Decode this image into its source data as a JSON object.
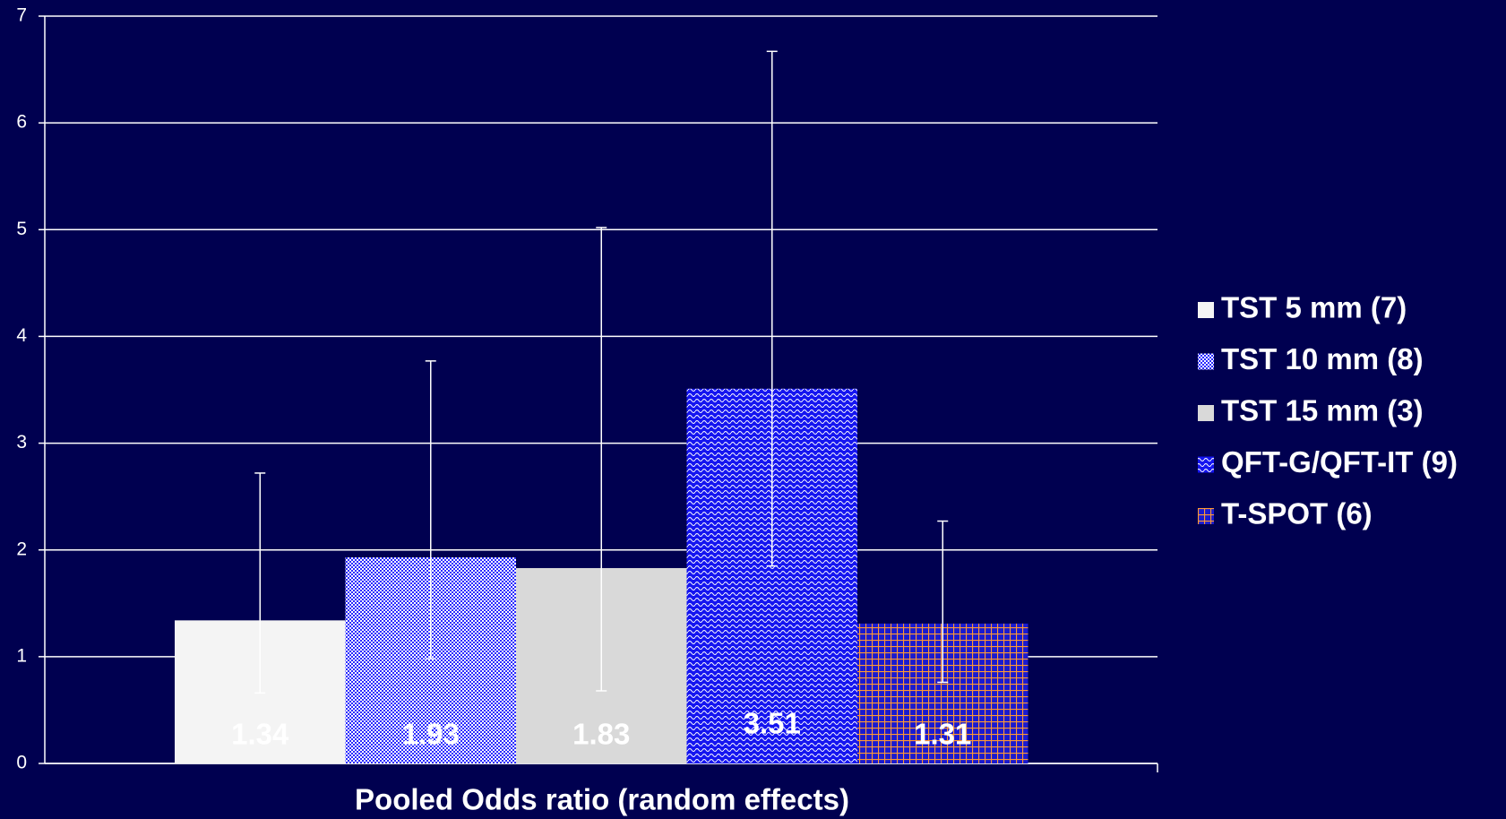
{
  "chart_data": {
    "type": "bar",
    "x_label": "Pooled Odds ratio (random effects)",
    "ylim": [
      0,
      7
    ],
    "yticks": [
      0,
      1,
      2,
      3,
      4,
      5,
      6,
      7
    ],
    "grid": true,
    "legend": "right",
    "series": [
      {
        "name": "TST 5 mm (7)",
        "color": "#f4f4f4",
        "pattern": "solid",
        "values": [
          1.34
        ],
        "ci_lower": [
          0.66
        ],
        "ci_upper": [
          2.72
        ]
      },
      {
        "name": "TST 10 mm (8)",
        "color": "#8080ff",
        "pattern": "checker",
        "values": [
          1.93
        ],
        "ci_lower": [
          0.98
        ],
        "ci_upper": [
          3.77
        ]
      },
      {
        "name": "TST 15 mm (3)",
        "color": "#d9d9d9",
        "pattern": "solid",
        "values": [
          1.83
        ],
        "ci_lower": [
          0.68
        ],
        "ci_upper": [
          5.02
        ]
      },
      {
        "name": "QFT-G/QFT-IT (9)",
        "color": "#2020ff",
        "pattern": "wave",
        "values": [
          3.51
        ],
        "ci_lower": [
          1.85
        ],
        "ci_upper": [
          6.67
        ]
      },
      {
        "name": "T-SPOT (6)",
        "color": "#ff9933",
        "pattern": "grid",
        "values": [
          1.31
        ],
        "ci_lower": [
          0.76
        ],
        "ci_upper": [
          2.27
        ]
      }
    ]
  }
}
